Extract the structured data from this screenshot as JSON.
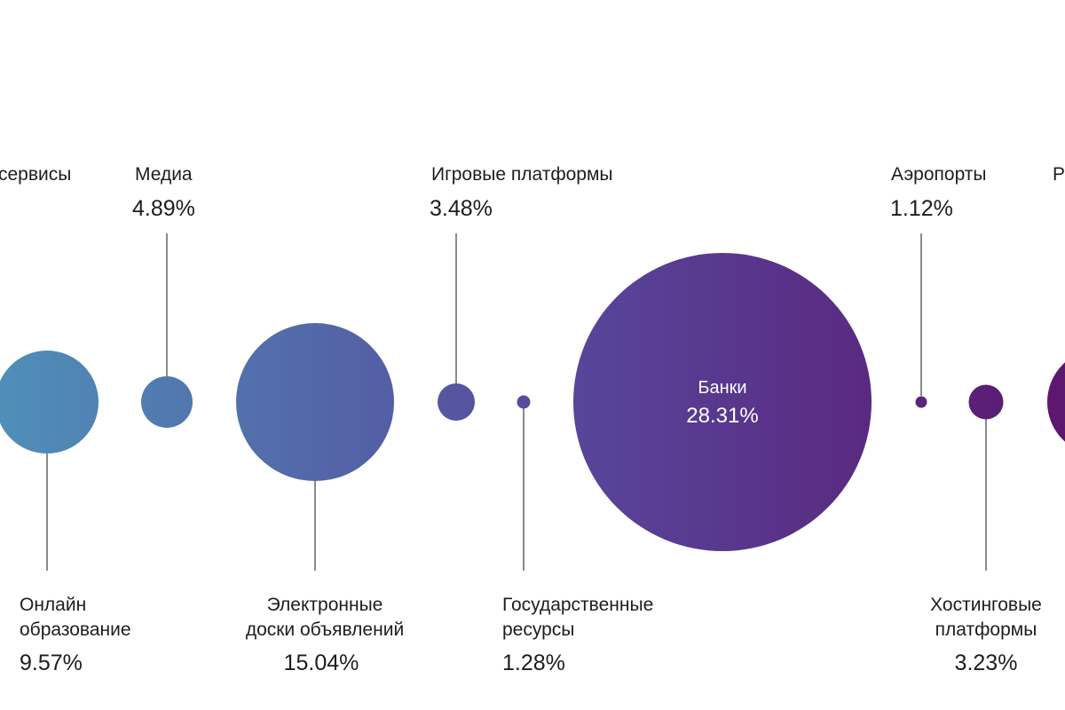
{
  "chart_data": {
    "type": "bubble",
    "series": [
      {
        "category": "сервисы",
        "value": null
      },
      {
        "category": "Медиа",
        "value": 4.89
      },
      {
        "category": "Онлайн образование",
        "value": 9.57
      },
      {
        "category": "Электронные доски объявлений",
        "value": 15.04
      },
      {
        "category": "Игровые платформы",
        "value": 3.48
      },
      {
        "category": "Государственные ресурсы",
        "value": 1.28
      },
      {
        "category": "Банки",
        "value": 28.31
      },
      {
        "category": "Аэропорты",
        "value": 1.12
      },
      {
        "category": "Хостинговые платформы",
        "value": 3.23
      },
      {
        "category": "Р",
        "value": null
      }
    ],
    "labels": {
      "servisy": {
        "name": "сервисы"
      },
      "media": {
        "name": "Медиа",
        "value": "4.89%"
      },
      "online_edu": {
        "line1": "Онлайн",
        "line2": "образование",
        "value": "9.57%"
      },
      "ads_boards": {
        "line1": "Электронные",
        "line2": "доски объявлений",
        "value": "15.04%"
      },
      "gaming": {
        "name": "Игровые платформы",
        "value": "3.48%"
      },
      "gov": {
        "line1": "Государственные",
        "line2": "ресурсы",
        "value": "1.28%"
      },
      "banks": {
        "name": "Банки",
        "value": "28.31%"
      },
      "airports": {
        "name": "Аэропорты",
        "value": "1.12%"
      },
      "hosting": {
        "line1": "Хостинговые",
        "line2": "платформы",
        "value": "3.23%"
      },
      "cut_r": {
        "name": "Р"
      }
    },
    "colors": {
      "gradient_start": "#4f8fb8",
      "gradient_mid": "#57459a",
      "gradient_end": "#5c176f",
      "connector": "#8a8a8a",
      "text": "#1d1d1f",
      "inner_text": "#ffffff"
    }
  }
}
